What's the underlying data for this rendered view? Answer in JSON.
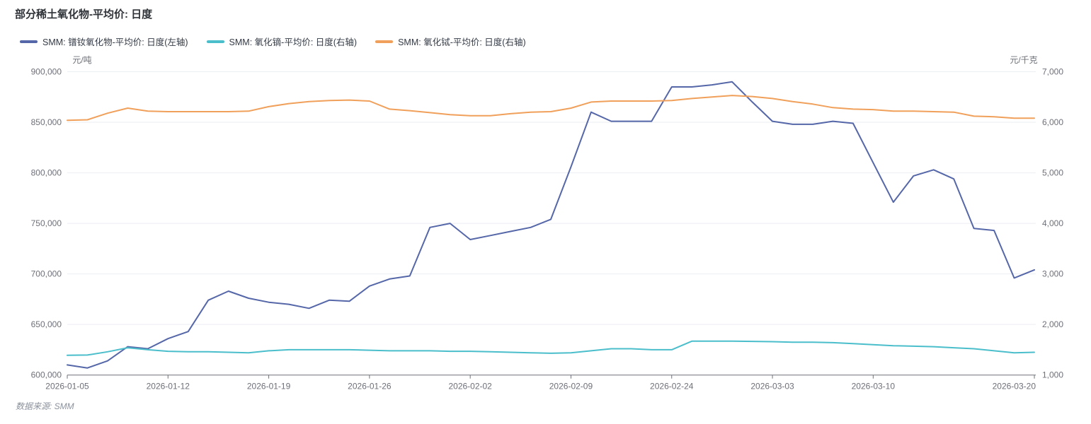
{
  "title": "部分稀土氧化物-平均价: 日度",
  "source_note": "数据来源: SMM",
  "colors": {
    "prnd": "#5567a8",
    "dy": "#4bbecb",
    "tb": "#f0a05a",
    "grid": "#ebeef2",
    "axis_line": "#6e7079",
    "tick_label": "#6e7079",
    "title_text": "#2f3338"
  },
  "legend": [
    {
      "label": "SMM: 镨钕氧化物-平均价: 日度(左轴)",
      "color": "#5567a8"
    },
    {
      "label": "SMM: 氧化镝-平均价: 日度(右轴)",
      "color": "#4bbecb"
    },
    {
      "label": "SMM: 氧化铽-平均价: 日度(右轴)",
      "color": "#f0a05a"
    }
  ],
  "chart_data": {
    "type": "line",
    "x": [
      "2026-01-05",
      "2026-01-06",
      "2026-01-07",
      "2026-01-08",
      "2026-01-09",
      "2026-01-12",
      "2026-01-13",
      "2026-01-14",
      "2026-01-15",
      "2026-01-16",
      "2026-01-19",
      "2026-01-20",
      "2026-01-21",
      "2026-01-22",
      "2026-01-23",
      "2026-01-26",
      "2026-01-27",
      "2026-01-28",
      "2026-01-29",
      "2026-01-30",
      "2026-02-02",
      "2026-02-03",
      "2026-02-04",
      "2026-02-05",
      "2026-02-06",
      "2026-02-09",
      "2026-02-10",
      "2026-02-11",
      "2026-02-12",
      "2026-02-23",
      "2026-02-24",
      "2026-02-25",
      "2026-02-26",
      "2026-02-27",
      "2026-03-02",
      "2026-03-03",
      "2026-03-04",
      "2026-03-05",
      "2026-03-06",
      "2026-03-09",
      "2026-03-10",
      "2026-03-11",
      "2026-03-12",
      "2026-03-13",
      "2026-03-16",
      "2026-03-17",
      "2026-03-18",
      "2026-03-19",
      "2026-03-20"
    ],
    "x_tick_indices": [
      0,
      5,
      10,
      15,
      20,
      25,
      30,
      35,
      40,
      48
    ],
    "y_left": {
      "name": "元/吨",
      "min": 600000,
      "max": 900000,
      "step": 50000,
      "tick_labels": [
        "600,000",
        "650,000",
        "700,000",
        "750,000",
        "800,000",
        "850,000",
        "900,000"
      ]
    },
    "y_right": {
      "name": "元/千克",
      "min": 1000,
      "max": 7000,
      "step": 1000,
      "tick_labels": [
        "1,000",
        "2,000",
        "3,000",
        "4,000",
        "5,000",
        "6,000",
        "7,000"
      ]
    },
    "grid": true,
    "legend_position": "top-left",
    "series": [
      {
        "name": "SMM: 镨钕氧化物-平均价: 日度(左轴)",
        "axis": "left",
        "color": "#5567a8",
        "values": [
          610000,
          607000,
          614000,
          628000,
          626000,
          636000,
          643000,
          674000,
          683000,
          676000,
          672000,
          670000,
          666000,
          674000,
          673000,
          688000,
          695000,
          698000,
          746000,
          750000,
          734000,
          738000,
          742000,
          746000,
          754000,
          806000,
          860000,
          851000,
          851000,
          851000,
          885000,
          885000,
          887000,
          890000,
          870000,
          851000,
          848000,
          848000,
          851000,
          849000,
          810000,
          771000,
          797000,
          803000,
          794000,
          745000,
          743000,
          696000,
          704000
        ]
      },
      {
        "name": "SMM: 氧化镝-平均价: 日度(右轴)",
        "axis": "right",
        "color": "#4bbecb",
        "values": [
          1390,
          1395,
          1460,
          1540,
          1500,
          1470,
          1460,
          1460,
          1450,
          1440,
          1480,
          1500,
          1500,
          1500,
          1500,
          1490,
          1480,
          1480,
          1480,
          1470,
          1470,
          1460,
          1450,
          1440,
          1430,
          1440,
          1480,
          1520,
          1520,
          1500,
          1500,
          1670,
          1670,
          1670,
          1665,
          1660,
          1650,
          1650,
          1640,
          1620,
          1600,
          1580,
          1570,
          1560,
          1540,
          1520,
          1480,
          1440,
          1450
        ]
      },
      {
        "name": "SMM: 氧化铽-平均价: 日度(右轴)",
        "axis": "right",
        "color": "#f0a05a",
        "values": [
          6040,
          6050,
          6180,
          6280,
          6220,
          6210,
          6210,
          6210,
          6210,
          6220,
          6310,
          6370,
          6410,
          6430,
          6440,
          6420,
          6260,
          6230,
          6190,
          6150,
          6130,
          6130,
          6170,
          6200,
          6210,
          6280,
          6400,
          6420,
          6420,
          6420,
          6430,
          6470,
          6500,
          6530,
          6510,
          6470,
          6410,
          6360,
          6290,
          6260,
          6250,
          6220,
          6220,
          6210,
          6200,
          6120,
          6110,
          6080,
          6080
        ]
      }
    ]
  }
}
